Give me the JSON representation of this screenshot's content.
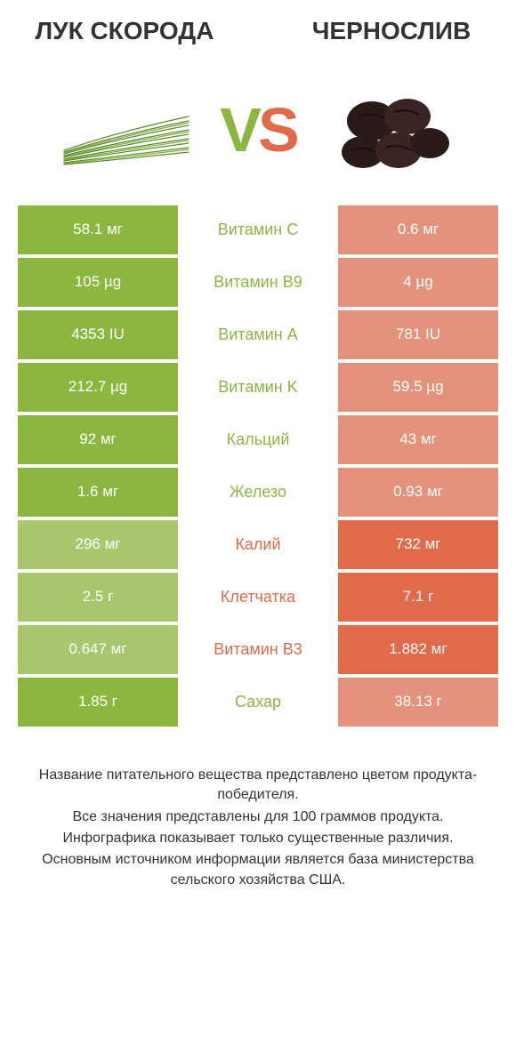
{
  "colors": {
    "green_win": "#8bb741",
    "green_lose": "#a8c76d",
    "red_win": "#e06a4a",
    "red_lose": "#e4927c",
    "text_green": "#8bb741",
    "text_red": "#e06a4a",
    "body_text": "#333333",
    "default_text": "#888888"
  },
  "header": {
    "left_title": "Лук скорода",
    "right_title": "Чернослив",
    "vs_v": "V",
    "vs_s": "S"
  },
  "rows": [
    {
      "label": "Витамин C",
      "left": "58.1 мг",
      "right": "0.6 мг",
      "winner": "left"
    },
    {
      "label": "Витамин B9",
      "left": "105 µg",
      "right": "4 µg",
      "winner": "left"
    },
    {
      "label": "Витамин A",
      "left": "4353 IU",
      "right": "781 IU",
      "winner": "left"
    },
    {
      "label": "Витамин K",
      "left": "212.7 µg",
      "right": "59.5 µg",
      "winner": "left"
    },
    {
      "label": "Кальций",
      "left": "92 мг",
      "right": "43 мг",
      "winner": "left"
    },
    {
      "label": "Железо",
      "left": "1.6 мг",
      "right": "0.93 мг",
      "winner": "left"
    },
    {
      "label": "Калий",
      "left": "296 мг",
      "right": "732 мг",
      "winner": "right"
    },
    {
      "label": "Клетчатка",
      "left": "2.5 г",
      "right": "7.1 г",
      "winner": "right"
    },
    {
      "label": "Витамин B3",
      "left": "0.647 мг",
      "right": "1.882 мг",
      "winner": "right"
    },
    {
      "label": "Сахар",
      "left": "1.85 г",
      "right": "38.13 г",
      "winner": "left"
    }
  ],
  "footer": {
    "lines": [
      "Название питательного вещества представлено цветом продукта-победителя.",
      "Все значения представлены для 100 граммов продукта.",
      "Инфографика показывает только существенные различия.",
      "Основным источником информации является база министерства сельского хозяйства США."
    ]
  }
}
